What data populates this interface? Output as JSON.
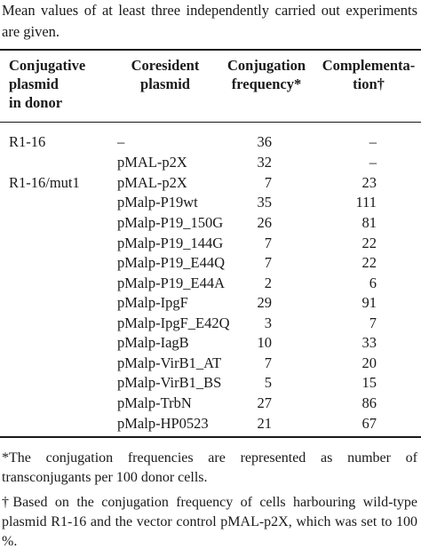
{
  "caption": "Mean values of at least three independently carried out experiments are given.",
  "headers": {
    "col1": [
      "Conjugative",
      "plasmid",
      "in donor"
    ],
    "col2": [
      "Coresident",
      "plasmid"
    ],
    "col3": [
      "Conjugation",
      "frequency*"
    ],
    "col4": [
      "Complementa-",
      "tion†"
    ]
  },
  "rows": [
    {
      "donor": "R1-16",
      "coresident": "–",
      "frequency": "36",
      "complementation": "–"
    },
    {
      "donor": "",
      "coresident": "pMAL-p2X",
      "frequency": "32",
      "complementation": "–"
    },
    {
      "donor": "R1-16/mut1",
      "coresident": "pMAL-p2X",
      "frequency": "7",
      "complementation": "23"
    },
    {
      "donor": "",
      "coresident": "pMalp-P19wt",
      "frequency": "35",
      "complementation": "111"
    },
    {
      "donor": "",
      "coresident": "pMalp-P19_150G",
      "frequency": "26",
      "complementation": "81"
    },
    {
      "donor": "",
      "coresident": "pMalp-P19_144G",
      "frequency": "7",
      "complementation": "22"
    },
    {
      "donor": "",
      "coresident": "pMalp-P19_E44Q",
      "frequency": "7",
      "complementation": "22"
    },
    {
      "donor": "",
      "coresident": "pMalp-P19_E44A",
      "frequency": "2",
      "complementation": "6"
    },
    {
      "donor": "",
      "coresident": "pMalp-IpgF",
      "frequency": "29",
      "complementation": "91"
    },
    {
      "donor": "",
      "coresident": "pMalp-IpgF_E42Q",
      "frequency": "3",
      "complementation": "7"
    },
    {
      "donor": "",
      "coresident": "pMalp-IagB",
      "frequency": "10",
      "complementation": "33"
    },
    {
      "donor": "",
      "coresident": "pMalp-VirB1_AT",
      "frequency": "7",
      "complementation": "20"
    },
    {
      "donor": "",
      "coresident": "pMalp-VirB1_BS",
      "frequency": "5",
      "complementation": "15"
    },
    {
      "donor": "",
      "coresident": "pMalp-TrbN",
      "frequency": "27",
      "complementation": "86"
    },
    {
      "donor": "",
      "coresident": "pMalp-HP0523",
      "frequency": "21",
      "complementation": "67"
    }
  ],
  "footnotes": [
    "*The conjugation frequencies are represented as number of transconjugants per 100 donor cells.",
    "†Based on the conjugation frequency of cells harbouring wild-type plasmid R1-16 and the vector control pMAL-p2X, which was set to 100 %."
  ]
}
